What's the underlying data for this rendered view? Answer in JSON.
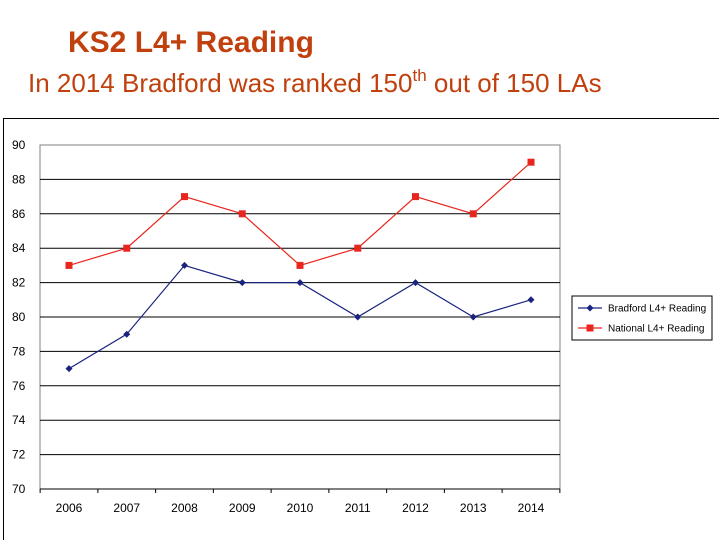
{
  "header": {
    "title": "KS2 L4+ Reading",
    "subtitle_before": "In 2014 Bradford was ranked 150",
    "subtitle_sup": "th",
    "subtitle_after": " out of 150 LAs"
  },
  "chart_data": {
    "type": "line",
    "title": "",
    "xlabel": "",
    "ylabel": "",
    "categories": [
      "2006",
      "2007",
      "2008",
      "2009",
      "2010",
      "2011",
      "2012",
      "2013",
      "2014"
    ],
    "ylim": [
      70,
      90
    ],
    "yticks": [
      90,
      88,
      86,
      84,
      82,
      80,
      78,
      76,
      74,
      72,
      70
    ],
    "grid": true,
    "legend_position": "right",
    "series": [
      {
        "name": "Bradford L4+ Reading",
        "color": "#1a237e",
        "marker": "diamond",
        "values": [
          77,
          79,
          83,
          82,
          82,
          80,
          82,
          80,
          81
        ]
      },
      {
        "name": "National L4+ Reading",
        "color": "#e8251e",
        "marker": "square",
        "values": [
          83,
          84,
          87,
          86,
          83,
          84,
          87,
          86,
          89
        ]
      }
    ]
  }
}
